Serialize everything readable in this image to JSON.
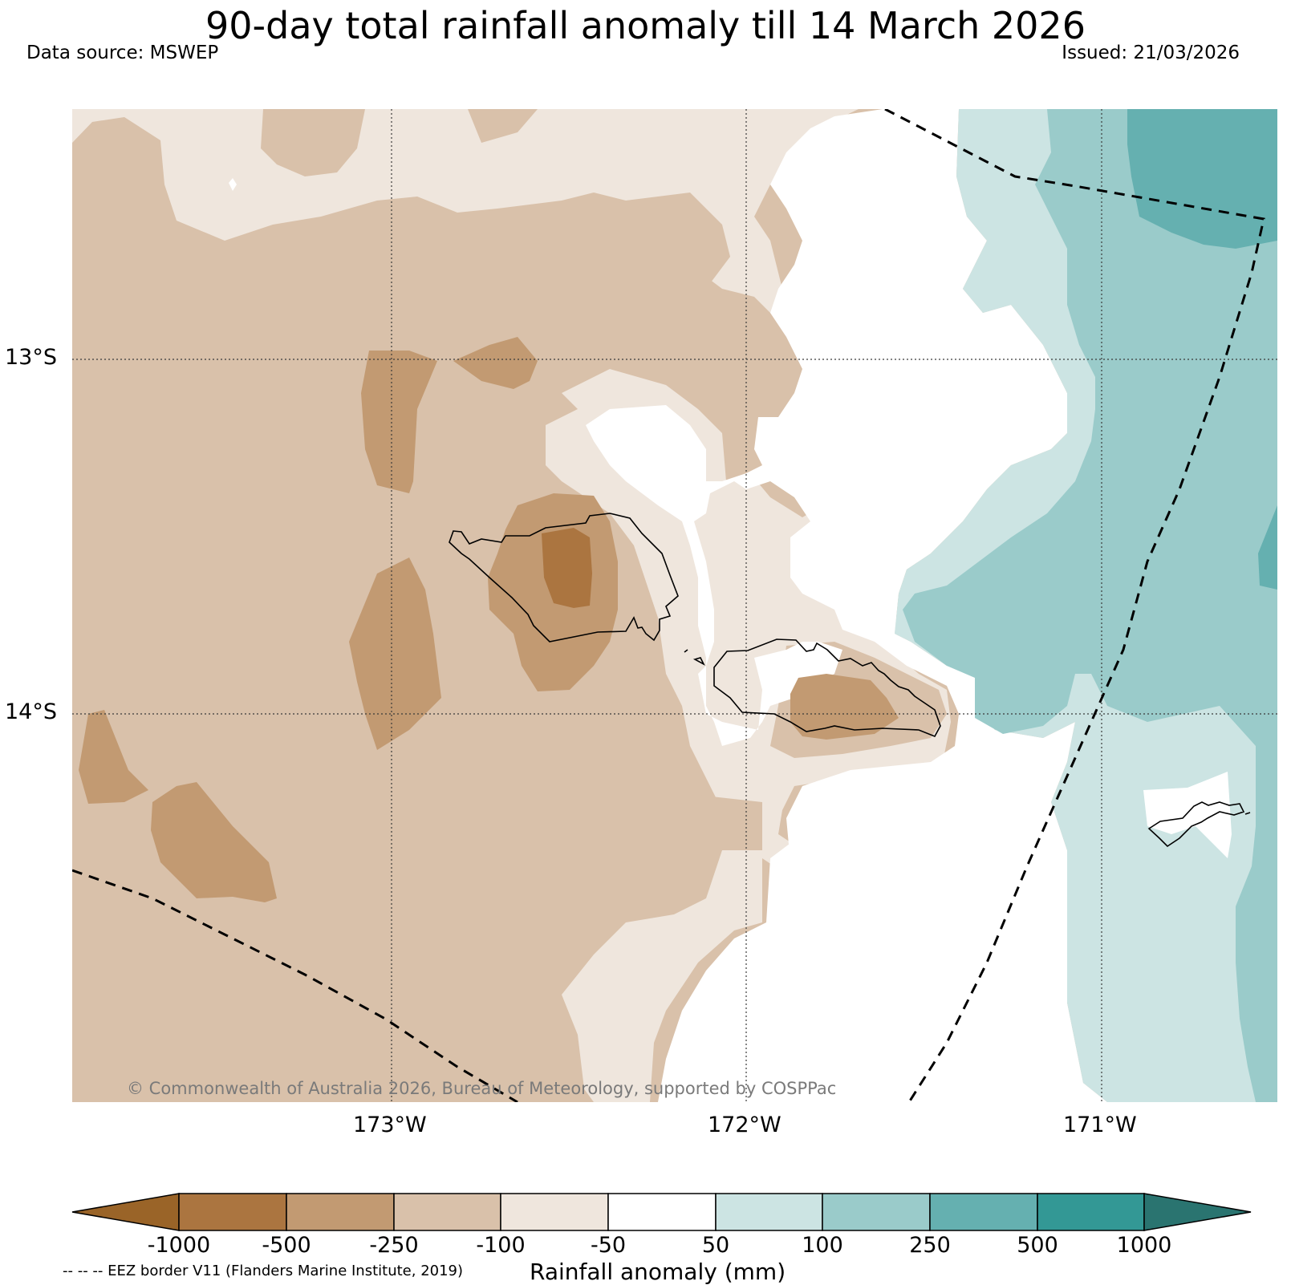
{
  "title": "90-day total rainfall anomaly till 14 March 2026",
  "data_source": "Data source: MSWEP",
  "issued": "Issued: 21/03/2026",
  "credit": "© Commonwealth of Australia 2026, Bureau of Meteorology, supported by COSPPac",
  "axes": {
    "lat_labels": [
      "13°S",
      "14°S"
    ],
    "lon_labels": [
      "173°W",
      "172°W",
      "171°W"
    ]
  },
  "colorbar": {
    "title": "Rainfall anomaly (mm)",
    "ticks": [
      "-1000",
      "-500",
      "-250",
      "-100",
      "-50",
      "50",
      "100",
      "250",
      "500",
      "1000"
    ],
    "colors": [
      "#9a6428",
      "#ab7540",
      "#c29a72",
      "#d9c1aa",
      "#efe6dd",
      "#ffffff",
      "#cce4e3",
      "#9acbca",
      "#65b0b0",
      "#339895",
      "#2a7470"
    ]
  },
  "legend_note": "-- -- -- EEZ border V11 (Flanders Marine Institute, 2019)"
}
